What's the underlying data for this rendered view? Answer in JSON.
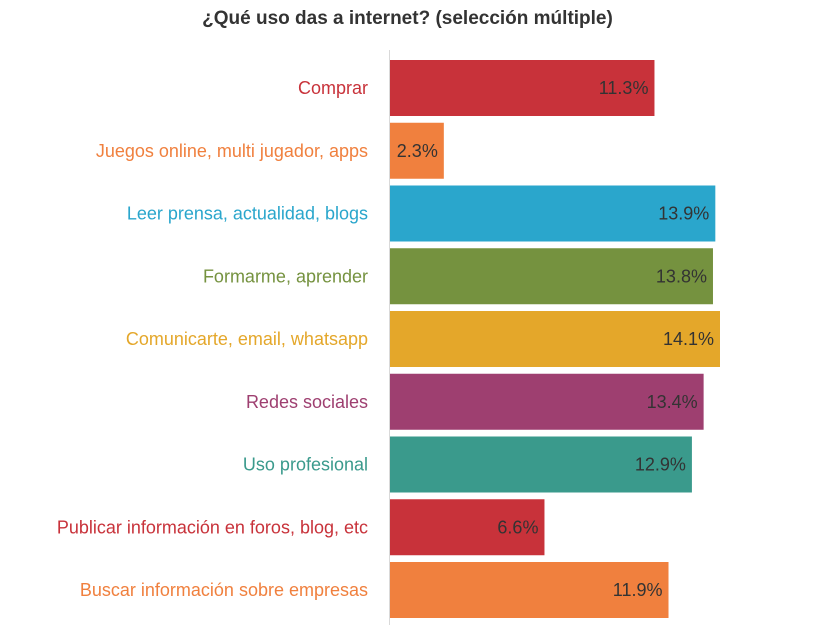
{
  "chart_data": {
    "type": "bar",
    "orientation": "horizontal",
    "title": "¿Qué uso das a internet? (selección múltiple)",
    "xlabel": "",
    "ylabel": "",
    "xlim": [
      0,
      14.1
    ],
    "grid": false,
    "legend": "none",
    "categories": [
      "Comprar",
      "Juegos online, multi jugador, apps",
      "Leer prensa, actualidad, blogs",
      "Formarme, aprender",
      "Comunicarte, email, whatsapp",
      "Redes sociales",
      "Uso profesional",
      "Publicar información en foros, blog, etc",
      "Buscar información sobre empresas"
    ],
    "values": [
      11.3,
      2.3,
      13.9,
      13.8,
      14.1,
      13.4,
      12.9,
      6.6,
      11.9
    ],
    "value_labels": [
      "11.3%",
      "2.3%",
      "13.9%",
      "13.8%",
      "14.1%",
      "13.4%",
      "12.9%",
      "6.6%",
      "11.9%"
    ],
    "colors": [
      "#c8323a",
      "#f0803e",
      "#2aa6cc",
      "#75923f",
      "#e4a72a",
      "#9e3f70",
      "#3a9a8c",
      "#c8323a",
      "#f0803e"
    ]
  }
}
